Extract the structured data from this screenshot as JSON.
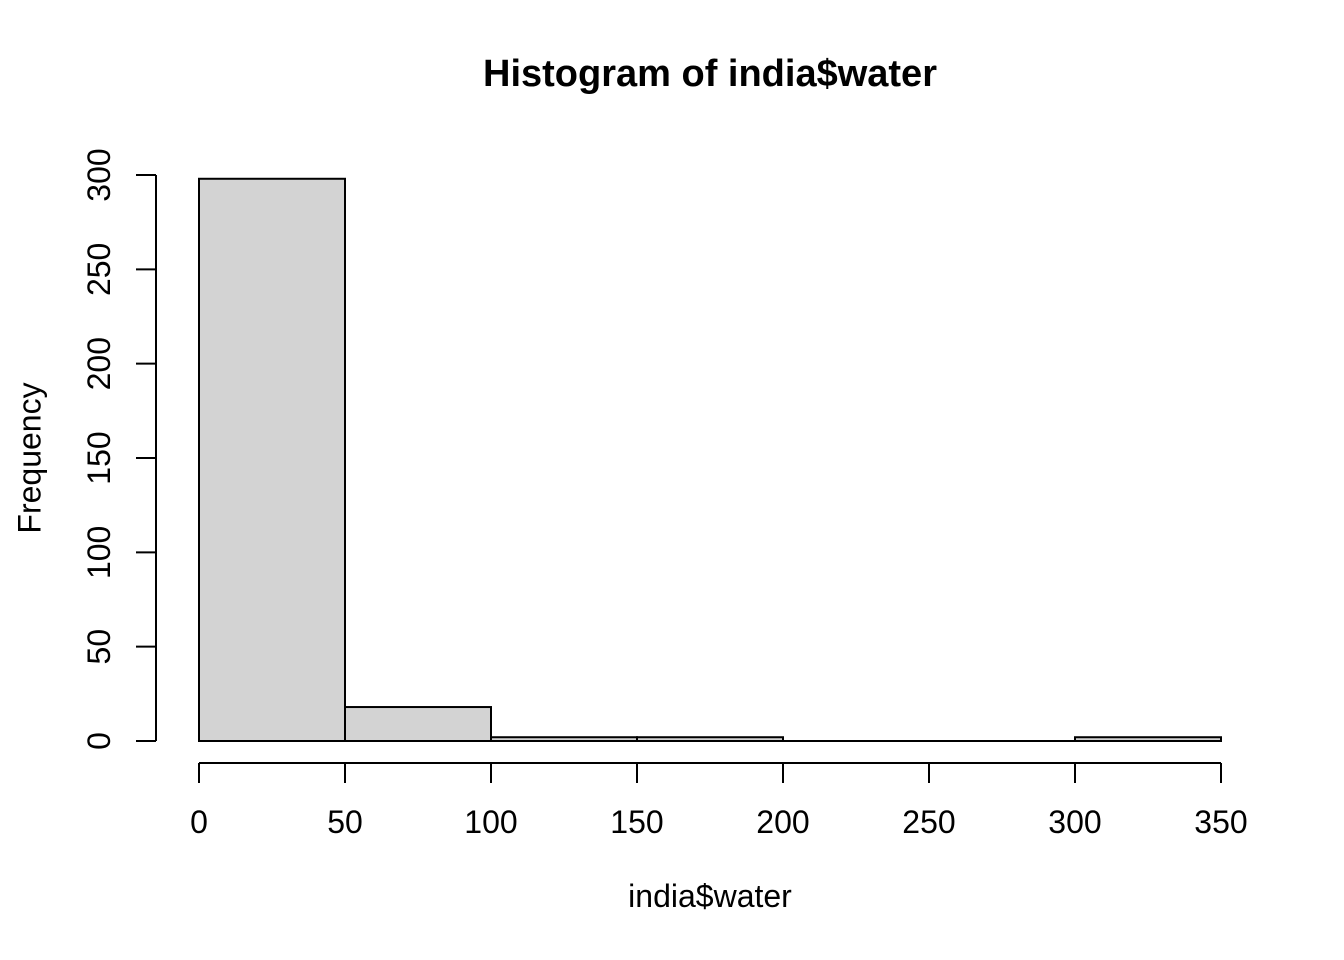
{
  "figure": {
    "title": "Histogram of india$water",
    "xlabel": "india$water",
    "ylabel": "Frequency"
  },
  "chart_data": {
    "type": "bar",
    "subtype": "histogram",
    "title": "Histogram of india$water",
    "xlabel": "india$water",
    "ylabel": "Frequency",
    "bin_width": 50,
    "bin_edges": [
      0,
      50,
      100,
      150,
      200,
      250,
      300,
      350
    ],
    "counts": [
      298,
      18,
      2,
      2,
      0,
      0,
      2
    ],
    "xlim": [
      0,
      350
    ],
    "ylim": [
      0,
      300
    ],
    "x_ticks": [
      0,
      50,
      100,
      150,
      200,
      250,
      300,
      350
    ],
    "y_ticks": [
      0,
      50,
      100,
      150,
      200,
      250,
      300
    ],
    "grid": false,
    "legend": "none",
    "bar_fill": "#d3d3d3",
    "bar_stroke": "#000000",
    "axis_color": "#000000",
    "text_color": "#000000",
    "background": "#ffffff"
  }
}
